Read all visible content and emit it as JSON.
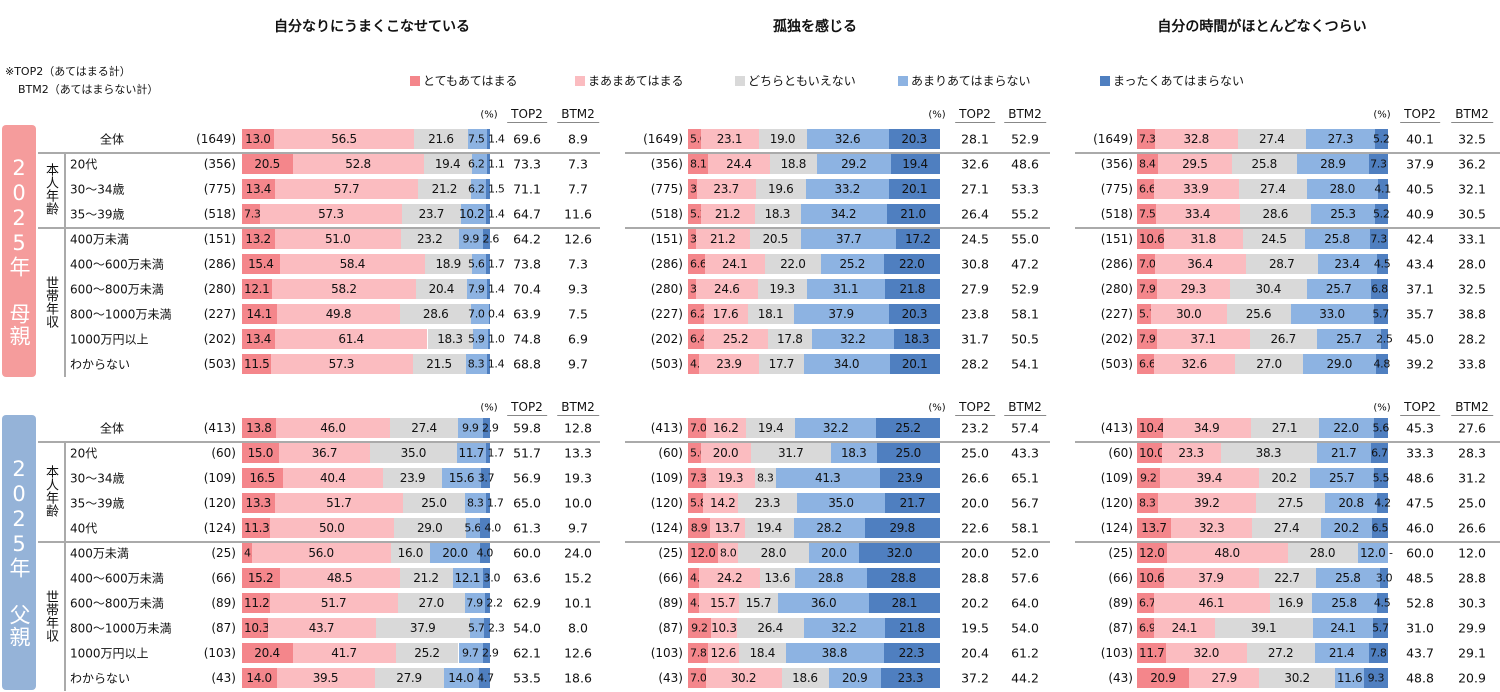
{
  "note": {
    "top2": "※TOP2（あてはまる計）",
    "btm2": "BTM2（あてはまらない計）"
  },
  "legend": [
    {
      "label": "とてもあてはまる",
      "color": "#f4868b"
    },
    {
      "label": "まあまあてはまる",
      "color": "#fbbcc0"
    },
    {
      "label": "どちらともいえない",
      "color": "#d9d9d9"
    },
    {
      "label": "あまりあてはまらない",
      "color": "#8db3e2"
    },
    {
      "label": "まったくあてはまらない",
      "color": "#4f7fc0"
    }
  ],
  "headers": {
    "pct": "(%)",
    "top2": "TOP2",
    "btm2": "BTM2",
    "zero": "-"
  },
  "groups": [
    {
      "label": "2025年 母親",
      "color": "#f59c9c",
      "overall": {
        "label": "全体",
        "n": "(1649)"
      },
      "subgroups": [
        {
          "label": "本人年齢",
          "rows": [
            {
              "label": "20代",
              "n": "(356)"
            },
            {
              "label": "30～34歳",
              "n": "(775)"
            },
            {
              "label": "35～39歳",
              "n": "(518)"
            }
          ]
        },
        {
          "label": "世帯年収",
          "rows": [
            {
              "label": "400万未満",
              "n": "(151)"
            },
            {
              "label": "400～600万未満",
              "n": "(286)"
            },
            {
              "label": "600～800万未満",
              "n": "(280)"
            },
            {
              "label": "800～1000万未満",
              "n": "(227)"
            },
            {
              "label": "1000万円以上",
              "n": "(202)"
            },
            {
              "label": "わからない",
              "n": "(503)"
            }
          ]
        }
      ]
    },
    {
      "label": "2025年 父親",
      "color": "#95b3d8",
      "overall": {
        "label": "全体",
        "n": "(413)"
      },
      "subgroups": [
        {
          "label": "本人年齢",
          "rows": [
            {
              "label": "20代",
              "n": "(60)"
            },
            {
              "label": "30～34歳",
              "n": "(109)"
            },
            {
              "label": "35～39歳",
              "n": "(120)"
            },
            {
              "label": "40代",
              "n": "(124)"
            }
          ]
        },
        {
          "label": "世帯年収",
          "rows": [
            {
              "label": "400万未満",
              "n": "(25)"
            },
            {
              "label": "400～600万未満",
              "n": "(66)"
            },
            {
              "label": "600～800万未満",
              "n": "(89)"
            },
            {
              "label": "800～1000万未満",
              "n": "(87)"
            },
            {
              "label": "1000万円以上",
              "n": "(103)"
            },
            {
              "label": "わからない",
              "n": "(43)"
            }
          ]
        }
      ]
    }
  ],
  "chart_data": {
    "type": "bar",
    "stacked": "100%",
    "orientation": "horizontal",
    "panels": [
      {
        "title": "自分なりにうまくこなせている",
        "groups": [
          [
            [
              13.0,
              56.5,
              21.6,
              7.5,
              1.4,
              69.6,
              8.9
            ],
            [
              20.5,
              52.8,
              19.4,
              6.2,
              1.1,
              73.3,
              7.3
            ],
            [
              13.4,
              57.7,
              21.2,
              6.2,
              1.5,
              71.1,
              7.7
            ],
            [
              7.3,
              57.3,
              23.7,
              10.2,
              1.4,
              64.7,
              11.6
            ],
            [
              13.2,
              51.0,
              23.2,
              9.9,
              2.6,
              64.2,
              12.6
            ],
            [
              15.4,
              58.4,
              18.9,
              5.6,
              1.7,
              73.8,
              7.3
            ],
            [
              12.1,
              58.2,
              20.4,
              7.9,
              1.4,
              70.4,
              9.3
            ],
            [
              14.1,
              49.8,
              28.6,
              7.0,
              0.4,
              63.9,
              7.5
            ],
            [
              13.4,
              61.4,
              18.3,
              5.9,
              1.0,
              74.8,
              6.9
            ],
            [
              11.5,
              57.3,
              21.5,
              8.3,
              1.4,
              68.8,
              9.7
            ]
          ],
          [
            [
              13.8,
              46.0,
              27.4,
              9.9,
              2.9,
              59.8,
              12.8
            ],
            [
              15.0,
              36.7,
              35.0,
              11.7,
              1.7,
              51.7,
              13.3
            ],
            [
              16.5,
              40.4,
              23.9,
              15.6,
              3.7,
              56.9,
              19.3
            ],
            [
              13.3,
              51.7,
              25.0,
              8.3,
              1.7,
              65.0,
              10.0
            ],
            [
              11.3,
              50.0,
              29.0,
              5.6,
              4.0,
              61.3,
              9.7
            ],
            [
              4.0,
              56.0,
              16.0,
              20.0,
              4.0,
              60.0,
              24.0
            ],
            [
              15.2,
              48.5,
              21.2,
              12.1,
              3.0,
              63.6,
              15.2
            ],
            [
              11.2,
              51.7,
              27.0,
              7.9,
              2.2,
              62.9,
              10.1
            ],
            [
              10.3,
              43.7,
              37.9,
              5.7,
              2.3,
              54.0,
              8.0
            ],
            [
              20.4,
              41.7,
              25.2,
              9.7,
              2.9,
              62.1,
              12.6
            ],
            [
              14.0,
              39.5,
              27.9,
              14.0,
              4.7,
              53.5,
              18.6
            ]
          ]
        ]
      },
      {
        "title": "孤独を感じる",
        "groups": [
          [
            [
              5.0,
              23.1,
              19.0,
              32.6,
              20.3,
              28.1,
              52.9
            ],
            [
              8.1,
              24.4,
              18.8,
              29.2,
              19.4,
              32.6,
              48.6
            ],
            [
              3.4,
              23.7,
              19.6,
              33.2,
              20.1,
              27.1,
              53.3
            ],
            [
              5.2,
              21.2,
              18.3,
              34.2,
              21.0,
              26.4,
              55.2
            ],
            [
              3.3,
              21.2,
              20.5,
              37.7,
              17.2,
              24.5,
              55.0
            ],
            [
              6.6,
              24.1,
              22.0,
              25.2,
              22.0,
              30.8,
              47.2
            ],
            [
              3.2,
              24.6,
              19.3,
              31.1,
              21.8,
              27.9,
              52.9
            ],
            [
              6.2,
              17.6,
              18.1,
              37.9,
              20.3,
              23.8,
              58.1
            ],
            [
              6.4,
              25.2,
              17.8,
              32.2,
              18.3,
              31.7,
              50.5
            ],
            [
              4.4,
              23.9,
              17.7,
              34.0,
              20.1,
              28.2,
              54.1
            ]
          ],
          [
            [
              7.0,
              16.2,
              19.4,
              32.2,
              25.2,
              23.2,
              57.4
            ],
            [
              5.0,
              20.0,
              31.7,
              18.3,
              25.0,
              25.0,
              43.3
            ],
            [
              7.3,
              19.3,
              8.3,
              41.3,
              23.9,
              26.6,
              65.1
            ],
            [
              5.8,
              14.2,
              23.3,
              35.0,
              21.7,
              20.0,
              56.7
            ],
            [
              8.9,
              13.7,
              19.4,
              28.2,
              29.8,
              22.6,
              58.1
            ],
            [
              12.0,
              8.0,
              28.0,
              20.0,
              32.0,
              20.0,
              52.0
            ],
            [
              4.5,
              24.2,
              13.6,
              28.8,
              28.8,
              28.8,
              57.6
            ],
            [
              4.5,
              15.7,
              15.7,
              36.0,
              28.1,
              20.2,
              64.0
            ],
            [
              9.2,
              10.3,
              26.4,
              32.2,
              21.8,
              19.5,
              54.0
            ],
            [
              7.8,
              12.6,
              18.4,
              38.8,
              22.3,
              20.4,
              61.2
            ],
            [
              7.0,
              30.2,
              18.6,
              20.9,
              23.3,
              37.2,
              44.2
            ]
          ]
        ]
      },
      {
        "title": "自分の時間がほとんどなくつらい",
        "groups": [
          [
            [
              7.3,
              32.8,
              27.4,
              27.3,
              5.2,
              40.1,
              32.5
            ],
            [
              8.4,
              29.5,
              25.8,
              28.9,
              7.3,
              37.9,
              36.2
            ],
            [
              6.6,
              33.9,
              27.4,
              28.0,
              4.1,
              40.5,
              32.1
            ],
            [
              7.5,
              33.4,
              28.6,
              25.3,
              5.2,
              40.9,
              30.5
            ],
            [
              10.6,
              31.8,
              24.5,
              25.8,
              7.3,
              42.4,
              33.1
            ],
            [
              7.0,
              36.4,
              28.7,
              23.4,
              4.5,
              43.4,
              28.0
            ],
            [
              7.9,
              29.3,
              30.4,
              25.7,
              6.8,
              37.1,
              32.5
            ],
            [
              5.7,
              30.0,
              25.6,
              33.0,
              5.7,
              35.7,
              38.8
            ],
            [
              7.9,
              37.1,
              26.7,
              25.7,
              2.5,
              45.0,
              28.2
            ],
            [
              6.6,
              32.6,
              27.0,
              29.0,
              4.8,
              39.2,
              33.8
            ]
          ],
          [
            [
              10.4,
              34.9,
              27.1,
              22.0,
              5.6,
              45.3,
              27.6
            ],
            [
              10.0,
              23.3,
              38.3,
              21.7,
              6.7,
              33.3,
              28.3
            ],
            [
              9.2,
              39.4,
              20.2,
              25.7,
              5.5,
              48.6,
              31.2
            ],
            [
              8.3,
              39.2,
              27.5,
              20.8,
              4.2,
              47.5,
              25.0
            ],
            [
              13.7,
              32.3,
              27.4,
              20.2,
              6.5,
              46.0,
              26.6
            ],
            [
              12.0,
              48.0,
              28.0,
              12.0,
              0,
              60.0,
              12.0
            ],
            [
              10.6,
              37.9,
              22.7,
              25.8,
              3.0,
              48.5,
              28.8
            ],
            [
              6.7,
              46.1,
              16.9,
              25.8,
              4.5,
              52.8,
              30.3
            ],
            [
              6.9,
              24.1,
              39.1,
              24.1,
              5.7,
              31.0,
              29.9
            ],
            [
              11.7,
              32.0,
              27.2,
              21.4,
              7.8,
              43.7,
              29.1
            ],
            [
              20.9,
              27.9,
              30.2,
              11.6,
              9.3,
              48.8,
              20.9
            ]
          ]
        ]
      }
    ]
  }
}
